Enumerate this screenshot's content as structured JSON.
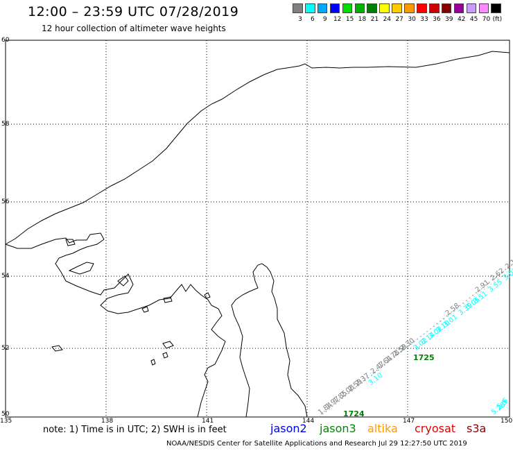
{
  "header": {
    "title": "12:00 – 23:59 UTC 07/28/2019",
    "subtitle": "12 hour collection of altimeter wave heights"
  },
  "legend": {
    "unit": "(ft)",
    "entries": [
      {
        "label": "3",
        "color": "#808080"
      },
      {
        "label": "6",
        "color": "#00ffff"
      },
      {
        "label": "9",
        "color": "#00aaff"
      },
      {
        "label": "12",
        "color": "#0000ff"
      },
      {
        "label": "15",
        "color": "#00dd00"
      },
      {
        "label": "18",
        "color": "#00b000"
      },
      {
        "label": "21",
        "color": "#008000"
      },
      {
        "label": "24",
        "color": "#ffff00"
      },
      {
        "label": "27",
        "color": "#ffcc00"
      },
      {
        "label": "30",
        "color": "#ff9900"
      },
      {
        "label": "33",
        "color": "#ff0000"
      },
      {
        "label": "36",
        "color": "#cc0000"
      },
      {
        "label": "39",
        "color": "#880000"
      },
      {
        "label": "42",
        "color": "#990099"
      },
      {
        "label": "45",
        "color": "#cc99ff"
      },
      {
        "label": "70",
        "color": "#ff88ff"
      },
      {
        "label": "",
        "color": "#000000"
      }
    ]
  },
  "axes": {
    "lat_labels": [
      "60",
      "58",
      "56",
      "54",
      "52",
      "50"
    ],
    "lon_labels": [
      "135",
      "138",
      "141",
      "144",
      "147",
      "150"
    ]
  },
  "track_labels": [
    {
      "text": "1725",
      "color": "#008000"
    },
    {
      "text": "1724",
      "color": "#008000"
    }
  ],
  "wave_readings": [
    {
      "text": "1.84",
      "color": "#808080"
    },
    {
      "text": "1.97",
      "color": "#808080"
    },
    {
      "text": "1.85",
      "color": "#808080"
    },
    {
      "text": "2.08",
      "color": "#808080"
    },
    {
      "text": "2.59",
      "color": "#808080"
    },
    {
      "text": "2.37",
      "color": "#808080"
    },
    {
      "text": "3.10",
      "color": "#00ffff"
    },
    {
      "text": "2.47",
      "color": "#808080"
    },
    {
      "text": "1.64",
      "color": "#808080"
    },
    {
      "text": "1.78",
      "color": "#808080"
    },
    {
      "text": "2.59",
      "color": "#808080"
    },
    {
      "text": "2.30",
      "color": "#808080"
    },
    {
      "text": "3.02",
      "color": "#00ffff"
    },
    {
      "text": "3.14",
      "color": "#00ffff"
    },
    {
      "text": "3.02",
      "color": "#00ffff"
    },
    {
      "text": "3.10",
      "color": "#00ffff"
    },
    {
      "text": "3.01",
      "color": "#00ffff"
    },
    {
      "text": "2.58",
      "color": "#808080"
    },
    {
      "text": "3.39",
      "color": "#00ffff"
    },
    {
      "text": "3.05",
      "color": "#00ffff"
    },
    {
      "text": "3.51",
      "color": "#00ffff"
    },
    {
      "text": "2.91",
      "color": "#808080"
    },
    {
      "text": "3.55",
      "color": "#00ffff"
    },
    {
      "text": "2.62",
      "color": "#808080"
    },
    {
      "text": "3.03",
      "color": "#00ffff"
    },
    {
      "text": "2.18",
      "color": "#808080"
    },
    {
      "text": "5.28",
      "color": "#00ffff"
    },
    {
      "text": "5.5",
      "color": "#00ffff"
    },
    {
      "text": "6",
      "color": "#00ffff"
    }
  ],
  "footer": {
    "note": "note:  1) Time is in UTC;  2) SWH is in feet",
    "satellites": [
      {
        "name": "jason2",
        "color": "#0000dd"
      },
      {
        "name": "jason3",
        "color": "#008800"
      },
      {
        "name": "altika",
        "color": "#ff9900"
      },
      {
        "name": "cryosat",
        "color": "#dd0000"
      },
      {
        "name": "s3a",
        "color": "#880000"
      }
    ],
    "credit": "NOAA/NESDIS Center for Satellite Applications and Research     Jul 29 12:27:50 UTC 2019"
  }
}
